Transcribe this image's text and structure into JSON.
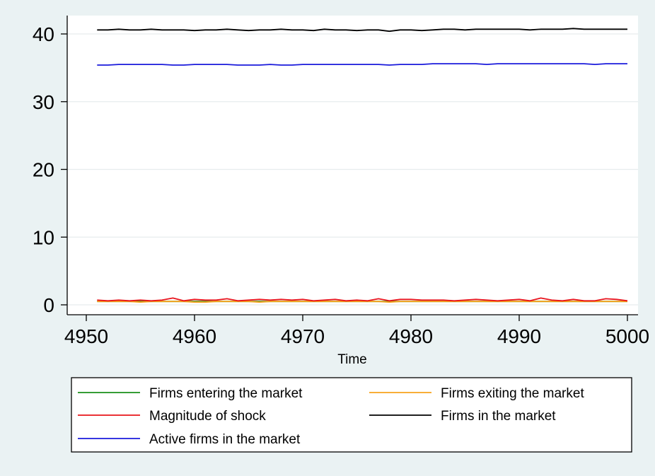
{
  "chart_data": {
    "type": "line",
    "title": "",
    "xlabel": "Time",
    "ylabel": "",
    "xlim": [
      4950,
      5000
    ],
    "ylim": [
      0,
      40
    ],
    "xticks": [
      4950,
      4960,
      4970,
      4980,
      4990,
      5000
    ],
    "yticks": [
      0,
      10,
      20,
      30,
      40
    ],
    "grid": true,
    "legend_position": "bottom",
    "x_start": 4951,
    "x_end": 5000,
    "series": [
      {
        "name": "Firms entering the market",
        "color": "#1a8f1a",
        "values": [
          0.5,
          0.5,
          0.5,
          0.5,
          0.5,
          0.5,
          0.5,
          0.5,
          0.5,
          0.5,
          0.5,
          0.5,
          0.5,
          0.5,
          0.5,
          0.5,
          0.5,
          0.5,
          0.5,
          0.5,
          0.5,
          0.5,
          0.5,
          0.5,
          0.5,
          0.5,
          0.5,
          0.5,
          0.5,
          0.5,
          0.5,
          0.5,
          0.5,
          0.5,
          0.5,
          0.5,
          0.5,
          0.5,
          0.5,
          0.5,
          0.5,
          0.5,
          0.5,
          0.5,
          0.5,
          0.5,
          0.5,
          0.5,
          0.5,
          0.5
        ]
      },
      {
        "name": "Firms exiting the market",
        "color": "#f7a21b",
        "values": [
          0.5,
          0.5,
          0.5,
          0.5,
          0.4,
          0.5,
          0.5,
          0.5,
          0.5,
          0.4,
          0.4,
          0.5,
          0.5,
          0.5,
          0.5,
          0.4,
          0.5,
          0.5,
          0.5,
          0.5,
          0.5,
          0.5,
          0.5,
          0.5,
          0.5,
          0.5,
          0.5,
          0.4,
          0.5,
          0.5,
          0.5,
          0.5,
          0.5,
          0.5,
          0.5,
          0.5,
          0.5,
          0.5,
          0.5,
          0.5,
          0.5,
          0.5,
          0.5,
          0.5,
          0.5,
          0.5,
          0.5,
          0.5,
          0.5,
          0.5
        ]
      },
      {
        "name": "Magnitude of shock",
        "color": "#e8141a",
        "values": [
          0.7,
          0.6,
          0.7,
          0.6,
          0.7,
          0.6,
          0.7,
          1.0,
          0.6,
          0.8,
          0.7,
          0.7,
          0.9,
          0.6,
          0.7,
          0.8,
          0.7,
          0.8,
          0.7,
          0.8,
          0.6,
          0.7,
          0.8,
          0.6,
          0.7,
          0.6,
          0.9,
          0.6,
          0.8,
          0.8,
          0.7,
          0.7,
          0.7,
          0.6,
          0.7,
          0.8,
          0.7,
          0.6,
          0.7,
          0.8,
          0.6,
          1.0,
          0.7,
          0.6,
          0.8,
          0.6,
          0.6,
          0.9,
          0.8,
          0.6
        ]
      },
      {
        "name": "Firms in the market",
        "color": "#000000",
        "values": [
          40.6,
          40.6,
          40.7,
          40.6,
          40.6,
          40.7,
          40.6,
          40.6,
          40.6,
          40.5,
          40.6,
          40.6,
          40.7,
          40.6,
          40.5,
          40.6,
          40.6,
          40.7,
          40.6,
          40.6,
          40.5,
          40.7,
          40.6,
          40.6,
          40.5,
          40.6,
          40.6,
          40.4,
          40.6,
          40.6,
          40.5,
          40.6,
          40.7,
          40.7,
          40.6,
          40.7,
          40.7,
          40.7,
          40.7,
          40.7,
          40.6,
          40.7,
          40.7,
          40.7,
          40.8,
          40.7,
          40.7,
          40.7,
          40.7,
          40.7
        ]
      },
      {
        "name": "Active firms in the market",
        "color": "#1a1adb",
        "values": [
          35.4,
          35.4,
          35.5,
          35.5,
          35.5,
          35.5,
          35.5,
          35.4,
          35.4,
          35.5,
          35.5,
          35.5,
          35.5,
          35.4,
          35.4,
          35.4,
          35.5,
          35.4,
          35.4,
          35.5,
          35.5,
          35.5,
          35.5,
          35.5,
          35.5,
          35.5,
          35.5,
          35.4,
          35.5,
          35.5,
          35.5,
          35.6,
          35.6,
          35.6,
          35.6,
          35.6,
          35.5,
          35.6,
          35.6,
          35.6,
          35.6,
          35.6,
          35.6,
          35.6,
          35.6,
          35.6,
          35.5,
          35.6,
          35.6,
          35.6
        ]
      }
    ]
  }
}
